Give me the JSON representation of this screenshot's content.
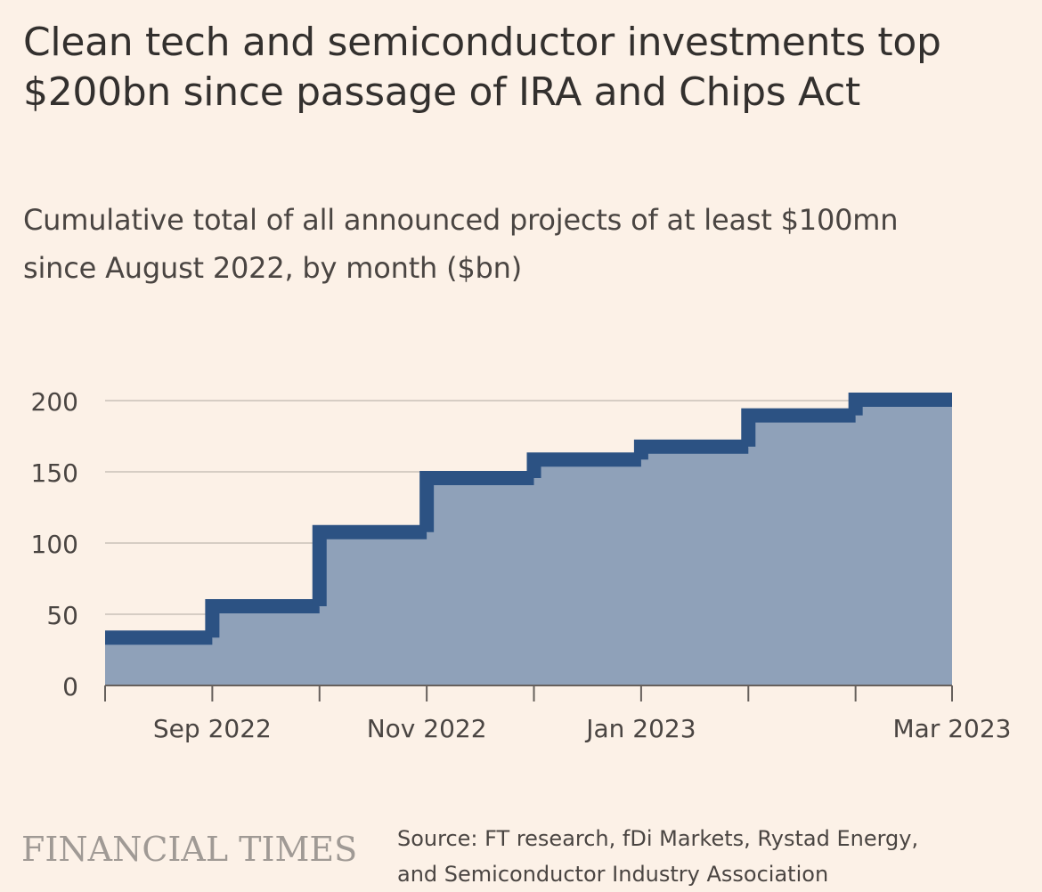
{
  "header": {
    "title_line1": "Clean tech and semiconductor investments top",
    "title_line2": "$200bn since passage of IRA and Chips Act",
    "subtitle_line1": "Cumulative total of all announced projects of at least $100mn",
    "subtitle_line2": "since August 2022, by month ($bn)"
  },
  "chart_data": {
    "type": "area",
    "step": true,
    "title": "Clean tech and semiconductor investments top $200bn since passage of IRA and Chips Act",
    "subtitle": "Cumulative total of all announced projects of at least $100mn since August 2022, by month ($bn)",
    "xlabel": "",
    "ylabel": "",
    "ylim": [
      0,
      200
    ],
    "yticks": [
      0,
      50,
      100,
      150,
      200
    ],
    "ytick_labels": [
      "0",
      "50",
      "100",
      "150",
      "200"
    ],
    "grid": true,
    "x_periods": [
      "Aug 2022",
      "Sep 2022",
      "Oct 2022",
      "Nov 2022",
      "Dec 2022",
      "Jan 2023",
      "Feb 2023",
      "Mar 2023"
    ],
    "values": [
      33,
      55,
      107,
      145,
      158,
      167,
      189,
      200
    ],
    "x_tick_labels": [
      "Sep 2022",
      "Nov 2022",
      "Jan 2023",
      "Mar 2023"
    ],
    "colors": {
      "fill": "#8fa1b9",
      "line": "#2c5283",
      "grid": "#d6cdc4",
      "axis": "#66605c"
    }
  },
  "footer": {
    "logo": "FINANCIAL TIMES",
    "source_line1": "Source: FT research, fDi Markets, Rystad Energy,",
    "source_line2": "and Semiconductor Industry Association"
  }
}
